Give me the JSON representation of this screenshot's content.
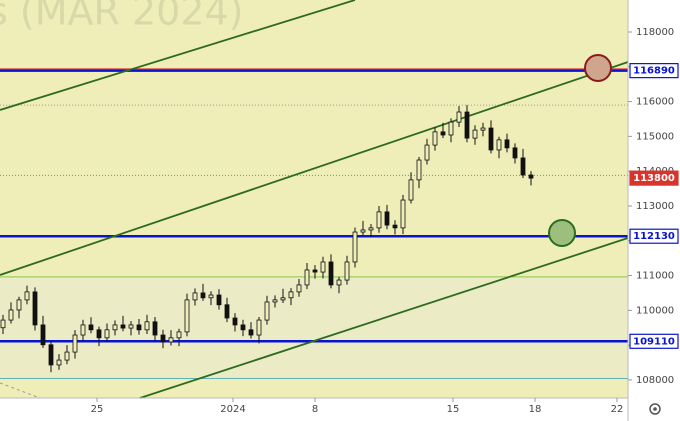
{
  "chart_data": {
    "type": "candlestick",
    "watermark": "s (MAR 2024)",
    "x": [
      0,
      1,
      2,
      3,
      4,
      5,
      6,
      7,
      8,
      9,
      10,
      11,
      12,
      13,
      14,
      15,
      16,
      17,
      18,
      19,
      20,
      21,
      22,
      23,
      24,
      25,
      26,
      27,
      28,
      29,
      30,
      31,
      32,
      33,
      34,
      35,
      36,
      37,
      38,
      39,
      40,
      41,
      42,
      43,
      44,
      45,
      46,
      47,
      48,
      49,
      50,
      51,
      52,
      53,
      54,
      55,
      56,
      57,
      58,
      59,
      60,
      61,
      62,
      63,
      64,
      65,
      66
    ],
    "open": [
      109500,
      109720,
      110010,
      110300,
      110530,
      109580,
      109010,
      108430,
      108570,
      108800,
      109290,
      109580,
      109440,
      109210,
      109440,
      109580,
      109490,
      109580,
      109440,
      109670,
      109290,
      109090,
      109210,
      109380,
      110300,
      110500,
      110360,
      110440,
      110160,
      109780,
      109580,
      109440,
      109290,
      109720,
      110240,
      110300,
      110360,
      110530,
      110730,
      111160,
      111100,
      111390,
      110730,
      110870,
      111390,
      112250,
      112310,
      112370,
      112830,
      112450,
      112370,
      113170,
      113750,
      114320,
      114750,
      115130,
      115040,
      115410,
      115700,
      114950,
      115180,
      115240,
      114610,
      114900,
      114670,
      114380,
      113890
    ],
    "high": [
      109870,
      110230,
      110390,
      110710,
      110660,
      109840,
      109120,
      108740,
      109000,
      109430,
      109730,
      109800,
      109530,
      109620,
      109710,
      109840,
      109690,
      109750,
      109870,
      109810,
      109440,
      109430,
      109470,
      110480,
      110630,
      110760,
      110550,
      110610,
      110360,
      109920,
      109730,
      109660,
      109810,
      110420,
      110430,
      110620,
      110640,
      110900,
      111360,
      111300,
      111540,
      111610,
      110960,
      111570,
      112380,
      112570,
      112480,
      113000,
      113030,
      112590,
      113320,
      113970,
      114410,
      114930,
      115260,
      115390,
      115520,
      115870,
      115900,
      115320,
      115390,
      115460,
      114990,
      115080,
      114800,
      114640,
      114000
    ],
    "low": [
      109320,
      109620,
      109770,
      110170,
      109420,
      108920,
      108220,
      108290,
      108450,
      108610,
      109110,
      109340,
      108970,
      109080,
      109280,
      109400,
      109280,
      109300,
      109320,
      109100,
      108910,
      108990,
      108970,
      109250,
      110140,
      110270,
      110150,
      110020,
      109660,
      109390,
      109260,
      109190,
      109050,
      109590,
      110080,
      110210,
      110150,
      110390,
      110610,
      110910,
      110920,
      110630,
      110490,
      110740,
      111230,
      112160,
      112100,
      112230,
      112330,
      112180,
      112190,
      113070,
      113510,
      114190,
      114590,
      114950,
      114830,
      115270,
      114830,
      114760,
      115000,
      114510,
      114370,
      114540,
      114220,
      113800,
      113590
    ],
    "close": [
      109720,
      110010,
      110300,
      110530,
      109580,
      109010,
      108430,
      108570,
      108800,
      109290,
      109580,
      109440,
      109210,
      109440,
      109580,
      109490,
      109580,
      109440,
      109670,
      109290,
      109090,
      109210,
      109380,
      110300,
      110500,
      110360,
      110440,
      110160,
      109780,
      109580,
      109440,
      109290,
      109720,
      110240,
      110300,
      110360,
      110530,
      110730,
      111160,
      111100,
      111390,
      110730,
      110870,
      111390,
      112250,
      112310,
      112370,
      112830,
      112450,
      112370,
      113170,
      113750,
      114320,
      114750,
      115130,
      115040,
      115410,
      115700,
      114950,
      115180,
      115240,
      114610,
      114900,
      114670,
      114380,
      113890,
      113800
    ],
    "xlim": [
      -0.375,
      78.125
    ],
    "xticks": [
      {
        "value": 11.75,
        "label": "25"
      },
      {
        "value": 28.75,
        "label": "2024"
      },
      {
        "value": 39,
        "label": "8"
      },
      {
        "value": 56.25,
        "label": "15"
      },
      {
        "value": 66.5,
        "label": "18"
      },
      {
        "value": 76.75,
        "label": "22"
      }
    ],
    "ylim": [
      107480,
      118920
    ],
    "yticks": [
      108000,
      109000,
      110000,
      111000,
      112000,
      113000,
      114000,
      115000,
      116000,
      117000,
      118000
    ],
    "levels": [
      {
        "value": 116890,
        "color": "#0a14d0",
        "tag": "outline"
      },
      {
        "value": 113800,
        "color": "#d8342c",
        "tag": "filled"
      },
      {
        "value": 112130,
        "color": "#0a14d0",
        "tag": "outline"
      },
      {
        "value": 109110,
        "color": "#0a14d0",
        "tag": "outline"
      }
    ],
    "lines": [
      {
        "value": 116940,
        "color": "#d8342c",
        "style": "solid",
        "width": 1
      },
      {
        "value": 116890,
        "color": "#0a14d0",
        "style": "solid",
        "width": 2.5
      },
      {
        "value": 115900,
        "color": "#999999",
        "style": "dotted",
        "width": 1
      },
      {
        "value": 113880,
        "color": "#4caf50",
        "style": "dotted",
        "width": 1
      },
      {
        "value": 112130,
        "color": "#0a14d0",
        "style": "solid",
        "width": 2.5
      },
      {
        "value": 110960,
        "color": "#8bc34a",
        "style": "solid",
        "width": 1
      },
      {
        "value": 109110,
        "color": "#0a14d0",
        "style": "solid",
        "width": 2.5
      },
      {
        "value": 108040,
        "color": "#5fb3b3",
        "style": "solid",
        "width": 1
      }
    ]
  }
}
